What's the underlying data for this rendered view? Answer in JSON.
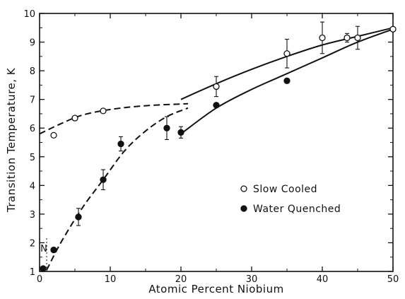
{
  "chart_data": {
    "type": "scatter",
    "xlabel": "Atomic Percent Niobium",
    "ylabel": "Transition Temperature, K",
    "xlim": [
      0,
      50
    ],
    "ylim": [
      1,
      10
    ],
    "x_ticks": [
      0,
      10,
      20,
      30,
      40,
      50
    ],
    "y_ticks": [
      1,
      2,
      3,
      4,
      5,
      6,
      7,
      8,
      9,
      10
    ],
    "grid": false,
    "legend_position": "center-right",
    "annotation": "N",
    "series": [
      {
        "name": "Slow Cooled",
        "marker": "open-circle",
        "points": [
          {
            "x": 2,
            "y": 5.75
          },
          {
            "x": 5,
            "y": 6.35
          },
          {
            "x": 9,
            "y": 6.6
          },
          {
            "x": 25,
            "y": 7.45,
            "err": 0.35
          },
          {
            "x": 35,
            "y": 8.6,
            "err": 0.5
          },
          {
            "x": 40,
            "y": 9.15,
            "err": 0.55
          },
          {
            "x": 43.5,
            "y": 9.15,
            "err": 0.15
          },
          {
            "x": 45,
            "y": 9.15,
            "err": 0.4
          },
          {
            "x": 50,
            "y": 9.45
          }
        ]
      },
      {
        "name": "Water Quenched",
        "marker": "filled-circle",
        "points": [
          {
            "x": 0.5,
            "y": 1.1
          },
          {
            "x": 2,
            "y": 1.75
          },
          {
            "x": 5.5,
            "y": 2.9,
            "err": 0.3
          },
          {
            "x": 9,
            "y": 4.2,
            "err": 0.35
          },
          {
            "x": 11.5,
            "y": 5.45,
            "err": 0.25
          },
          {
            "x": 18,
            "y": 6.0,
            "err": 0.4
          },
          {
            "x": 20,
            "y": 5.85,
            "err": 0.2
          },
          {
            "x": 25,
            "y": 6.8
          },
          {
            "x": 35,
            "y": 7.65
          }
        ]
      }
    ],
    "curves": [
      {
        "style": "dashed",
        "points": [
          [
            0,
            5.8
          ],
          [
            3,
            6.15
          ],
          [
            6,
            6.45
          ],
          [
            10,
            6.65
          ],
          [
            15,
            6.78
          ],
          [
            21,
            6.85
          ]
        ]
      },
      {
        "style": "dashed",
        "points": [
          [
            1,
            1.05
          ],
          [
            3,
            2.0
          ],
          [
            6,
            3.2
          ],
          [
            9,
            4.2
          ],
          [
            12,
            5.2
          ],
          [
            15,
            5.9
          ],
          [
            18,
            6.4
          ],
          [
            21,
            6.7
          ]
        ]
      },
      {
        "style": "solid",
        "points": [
          [
            20,
            7.0
          ],
          [
            25,
            7.55
          ],
          [
            30,
            8.05
          ],
          [
            35,
            8.5
          ],
          [
            40,
            8.9
          ],
          [
            45,
            9.2
          ],
          [
            50,
            9.5
          ]
        ]
      },
      {
        "style": "solid",
        "points": [
          [
            20,
            5.8
          ],
          [
            25,
            6.7
          ],
          [
            30,
            7.35
          ],
          [
            35,
            7.9
          ],
          [
            40,
            8.45
          ],
          [
            45,
            9.0
          ],
          [
            50,
            9.45
          ]
        ]
      }
    ]
  }
}
